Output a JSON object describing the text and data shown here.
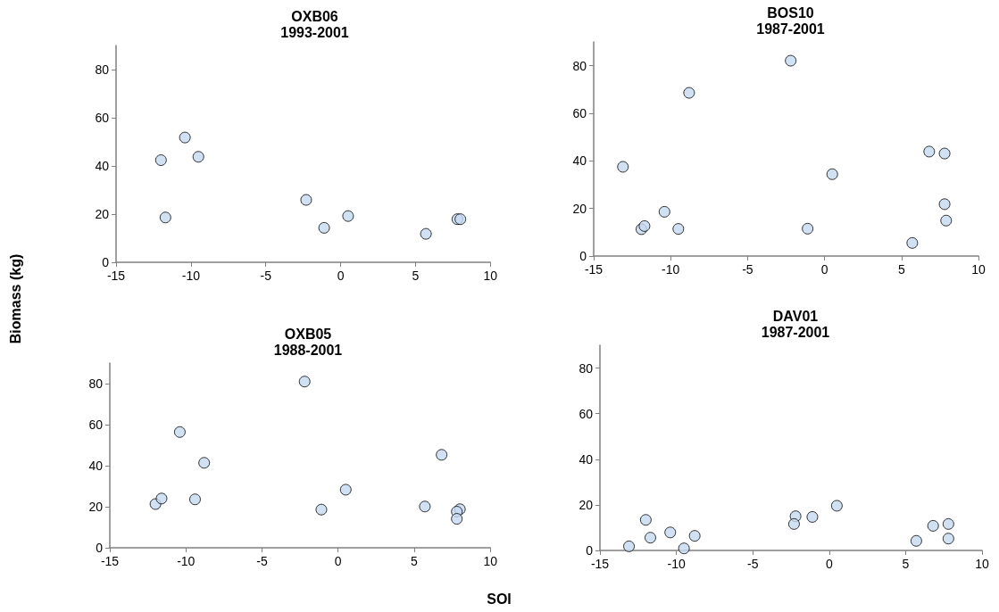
{
  "chart_data": [
    {
      "type": "scatter",
      "title": "OXB06",
      "subtitle": "1993-2001",
      "ylabel": "Biomass (kg)",
      "marker": "circle",
      "grid": false,
      "xlim": [
        -15,
        10
      ],
      "xticks": [
        -15,
        -10,
        -5,
        0,
        5,
        10
      ],
      "ylim": [
        0,
        90
      ],
      "yticks": [
        0,
        20,
        40,
        60,
        80
      ],
      "series": [
        {
          "color": "#c6d9f1",
          "x": [
            -12.0,
            -10.4,
            -9.5,
            -11.7,
            -2.3,
            -1.1,
            0.5,
            5.7,
            7.8,
            8.0
          ],
          "values": [
            42.4,
            51.8,
            43.8,
            18.6,
            25.9,
            14.3,
            19.2,
            11.8,
            17.9,
            17.9
          ]
        }
      ]
    },
    {
      "type": "scatter",
      "title": "BOS10",
      "subtitle": "1987-2001",
      "marker": "circle",
      "grid": false,
      "xlim": [
        -15,
        10
      ],
      "xticks": [
        -15,
        -10,
        -5,
        0,
        5,
        10
      ],
      "ylim": [
        0,
        90
      ],
      "yticks": [
        0,
        20,
        40,
        60,
        80
      ],
      "series": [
        {
          "color": "#c6d9f1",
          "x": [
            -13.1,
            -11.9,
            -11.7,
            -10.4,
            -9.5,
            -8.8,
            -2.2,
            -1.1,
            0.5,
            5.7,
            6.8,
            7.8,
            7.8,
            7.9
          ],
          "values": [
            37.5,
            11.3,
            12.6,
            18.6,
            11.4,
            68.6,
            82.1,
            11.5,
            34.4,
            5.5,
            43.9,
            43.1,
            21.8,
            14.9
          ]
        }
      ]
    },
    {
      "type": "scatter",
      "title": "OXB05",
      "subtitle": "1988-2001",
      "marker": "circle",
      "grid": false,
      "xlim": [
        -15,
        10
      ],
      "xticks": [
        -15,
        -10,
        -5,
        0,
        5,
        10
      ],
      "ylim": [
        0,
        90
      ],
      "yticks": [
        0,
        20,
        40,
        60,
        80
      ],
      "series": [
        {
          "color": "#c6d9f1",
          "x": [
            -12.0,
            -11.6,
            -10.4,
            -9.4,
            -8.8,
            -2.2,
            -1.1,
            0.5,
            5.7,
            6.8,
            8.0,
            7.8,
            7.8
          ],
          "values": [
            21.3,
            24.0,
            56.4,
            23.6,
            41.4,
            81.0,
            18.6,
            28.3,
            20.1,
            45.3,
            18.8,
            17.6,
            14.1
          ]
        }
      ]
    },
    {
      "type": "scatter",
      "title": "DAV01",
      "subtitle": "1987-2001",
      "xlabel": "SOI",
      "marker": "circle",
      "grid": false,
      "xlim": [
        -15,
        10
      ],
      "xticks": [
        -15,
        -10,
        -5,
        0,
        5,
        10
      ],
      "ylim": [
        0,
        90
      ],
      "yticks": [
        0,
        20,
        40,
        60,
        80
      ],
      "series": [
        {
          "color": "#c6d9f1",
          "x": [
            -13.1,
            -12.0,
            -11.7,
            -10.4,
            -9.5,
            -8.8,
            -2.2,
            -2.3,
            -1.1,
            0.5,
            5.7,
            6.8,
            7.8,
            7.8
          ],
          "values": [
            1.8,
            13.4,
            5.6,
            7.9,
            0.9,
            6.4,
            15.0,
            11.6,
            14.7,
            19.6,
            4.2,
            10.8,
            11.6,
            5.2
          ]
        }
      ]
    }
  ]
}
